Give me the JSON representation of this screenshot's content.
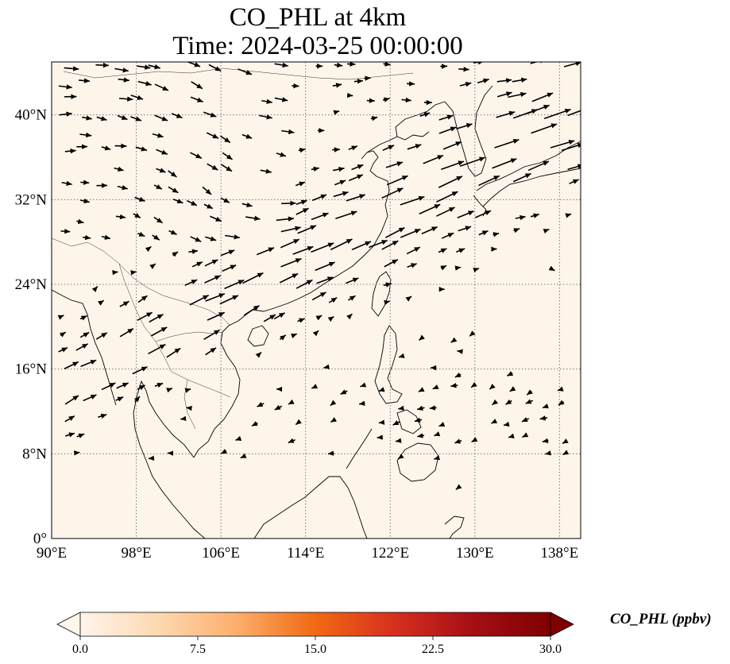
{
  "title_line1": "CO_PHL at 4km",
  "title_line2": "Time: 2024-03-25 00:00:00",
  "map": {
    "lon_range": [
      90,
      140
    ],
    "lat_range": [
      0,
      45
    ],
    "lon_ticks": [
      {
        "value": 90,
        "label": "90°E"
      },
      {
        "value": 98,
        "label": "98°E"
      },
      {
        "value": 106,
        "label": "106°E"
      },
      {
        "value": 114,
        "label": "114°E"
      },
      {
        "value": 122,
        "label": "122°E"
      },
      {
        "value": 130,
        "label": "130°E"
      },
      {
        "value": 138,
        "label": "138°E"
      }
    ],
    "lat_ticks": [
      {
        "value": 0,
        "label": "0°"
      },
      {
        "value": 8,
        "label": "8°N"
      },
      {
        "value": 16,
        "label": "16°N"
      },
      {
        "value": 24,
        "label": "24°N"
      },
      {
        "value": 32,
        "label": "32°N"
      },
      {
        "value": 40,
        "label": "40°N"
      }
    ],
    "gridlines": true,
    "background_fill": "#fdf5ea",
    "coastline_color": "#000000",
    "vector_color": "#000000"
  },
  "colorbar": {
    "label": "CO_PHL (ppbv)",
    "min": 0,
    "max": 30,
    "ticks": [
      "0.0",
      "7.5",
      "15.0",
      "22.5",
      "30.0"
    ],
    "extend": "both",
    "colors": [
      "#fff5eb",
      "#fdd8b0",
      "#fdae6b",
      "#f16913",
      "#d7301f",
      "#a50f15",
      "#7f0000"
    ]
  }
}
